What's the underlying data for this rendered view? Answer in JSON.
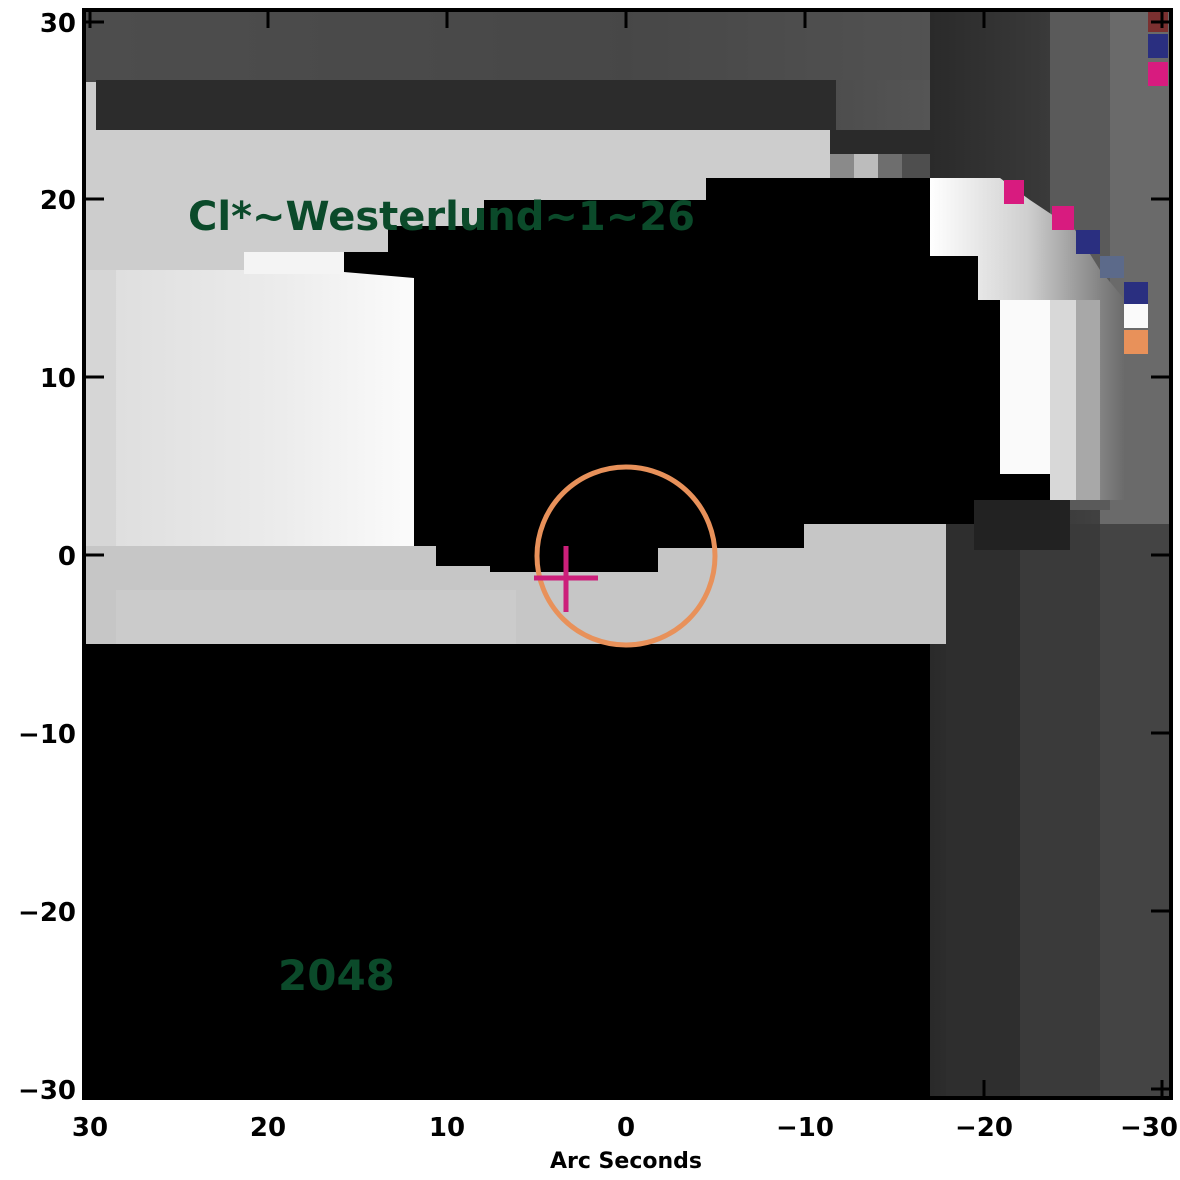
{
  "figure": {
    "star_label": "Cl*~Westerlund~1~26",
    "band_label": "2048",
    "x_axis_title": "Arc Seconds",
    "x_ticks": [
      "30",
      "20",
      "10",
      "0",
      "−10",
      "−20",
      "−30"
    ],
    "y_ticks": [
      "30",
      "20",
      "10",
      "0",
      "−10",
      "−20",
      "−30"
    ],
    "colors": {
      "annotation_text": "#0b4a2a",
      "circle": "#e8915a",
      "cross": "#cc1f7a",
      "marker_magenta": "#d81b7f",
      "marker_blue": "#2a2f80",
      "marker_orange": "#e8915a",
      "frame": "#000000"
    },
    "marker_color_icons": [
      "magenta-square-icon",
      "blue-square-icon",
      "orange-square-icon",
      "white-square-icon",
      "gray-square-icon"
    ]
  }
}
